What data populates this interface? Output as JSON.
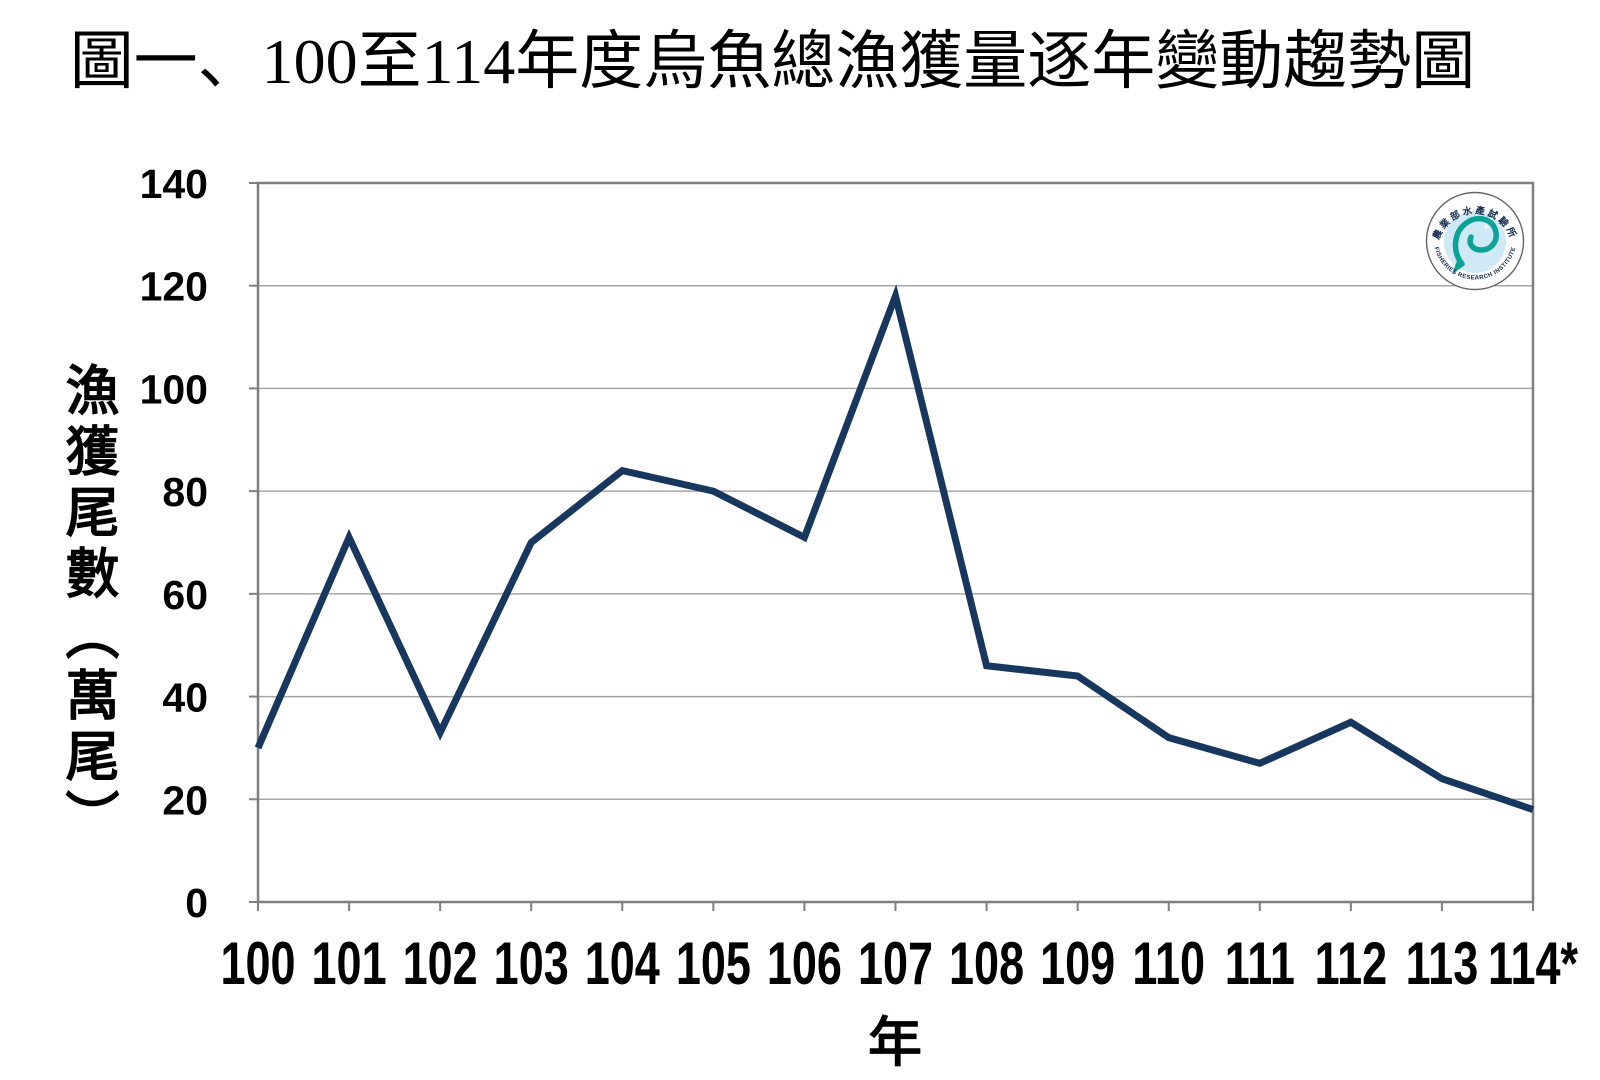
{
  "figure": {
    "title": "圖一、100至114年度烏魚總漁獲量逐年變動趨勢圖"
  },
  "chart_data": {
    "type": "line",
    "title": "圖一、100至114年度烏魚總漁獲量逐年變動趨勢圖",
    "categories": [
      "100",
      "101",
      "102",
      "103",
      "104",
      "105",
      "106",
      "107",
      "108",
      "109",
      "110",
      "111",
      "112",
      "113",
      "114*"
    ],
    "values": [
      30,
      71,
      33,
      70,
      84,
      80,
      71,
      118,
      46,
      44,
      32,
      27,
      35,
      24,
      18
    ],
    "xlabel": "年",
    "ylabel": "漁獲尾數（萬尾）",
    "ylim": [
      0,
      140
    ],
    "y_ticks": [
      0,
      20,
      40,
      60,
      80,
      100,
      120,
      140
    ],
    "grid": true,
    "legend_position": "none",
    "line_color": "#17375e"
  },
  "logo": {
    "top_text": "農業部水產試驗所",
    "bottom_text": "FISHERIES RESEARCH INSTITUTE",
    "emblem_color": "#0ca295",
    "inner_circle_color": "#cfe9f7"
  },
  "colors": {
    "background": "#ffffff",
    "grid_line": "#a6a6a6",
    "axis_line": "#7f7f7f",
    "text": "#000000"
  }
}
